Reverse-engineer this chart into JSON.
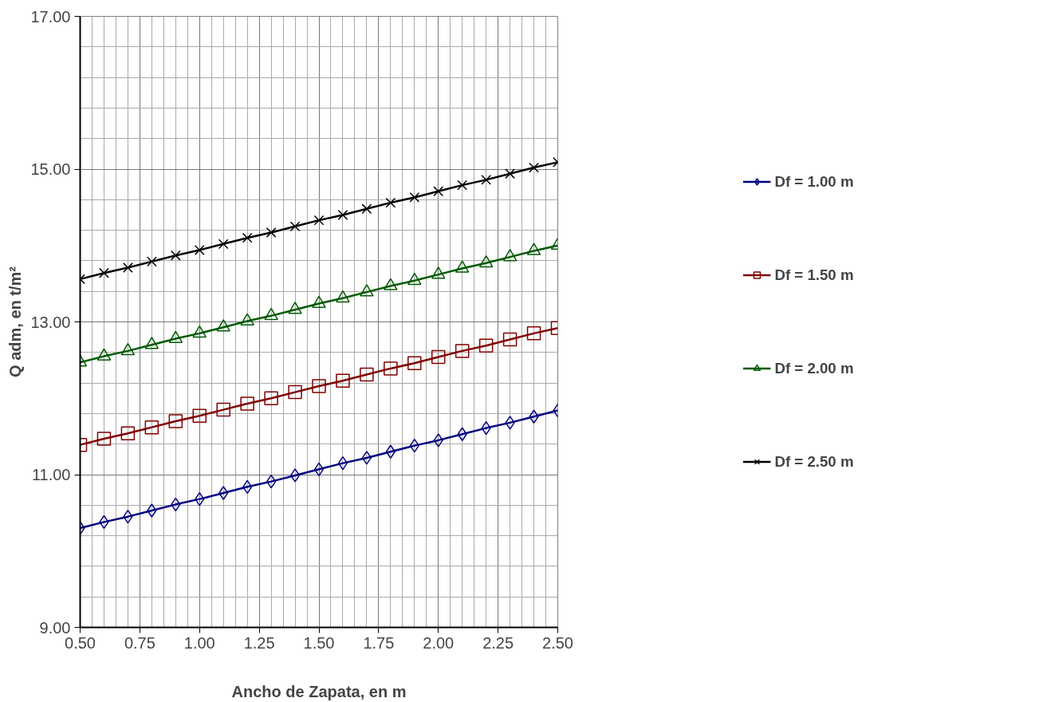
{
  "chart_data": {
    "type": "line",
    "xlabel": "Ancho de Zapata, en m",
    "ylabel": "Q adm, en t/m²",
    "x": [
      0.5,
      0.6,
      0.7,
      0.8,
      0.9,
      1.0,
      1.1,
      1.2,
      1.3,
      1.4,
      1.5,
      1.6,
      1.7,
      1.8,
      1.9,
      2.0,
      2.1,
      2.2,
      2.3,
      2.4,
      2.5
    ],
    "series": [
      {
        "name": "Df = 1.00 m",
        "color": "#000080",
        "marker": "diamond",
        "values": [
          10.3,
          10.38,
          10.45,
          10.53,
          10.61,
          10.68,
          10.76,
          10.84,
          10.91,
          10.99,
          11.07,
          11.15,
          11.22,
          11.3,
          11.38,
          11.45,
          11.53,
          11.61,
          11.68,
          11.76,
          11.84
        ]
      },
      {
        "name": "Df = 1.50 m",
        "color": "#800000",
        "marker": "square",
        "values": [
          11.39,
          11.47,
          11.54,
          11.62,
          11.7,
          11.77,
          11.85,
          11.93,
          12.0,
          12.08,
          12.16,
          12.23,
          12.31,
          12.39,
          12.46,
          12.54,
          12.62,
          12.69,
          12.77,
          12.85,
          12.92
        ]
      },
      {
        "name": "Df = 2.00 m",
        "color": "#005a00",
        "marker": "triangle",
        "values": [
          12.47,
          12.55,
          12.62,
          12.7,
          12.78,
          12.85,
          12.93,
          13.01,
          13.08,
          13.16,
          13.24,
          13.31,
          13.39,
          13.47,
          13.54,
          13.62,
          13.7,
          13.77,
          13.85,
          13.93,
          14.0
        ]
      },
      {
        "name": "Df = 2.50 m",
        "color": "#000000",
        "marker": "cross",
        "values": [
          13.56,
          13.64,
          13.71,
          13.79,
          13.87,
          13.94,
          14.02,
          14.1,
          14.17,
          14.25,
          14.33,
          14.4,
          14.48,
          14.56,
          14.63,
          14.71,
          14.79,
          14.86,
          14.94,
          15.02,
          15.09
        ]
      }
    ],
    "xlim": [
      0.5,
      2.5
    ],
    "xticks": [
      {
        "value": 0.5,
        "label": "0.50"
      },
      {
        "value": 0.55,
        "label": null
      },
      {
        "value": 0.6,
        "label": null
      },
      {
        "value": 0.65,
        "label": null
      },
      {
        "value": 0.7,
        "label": null
      },
      {
        "value": 0.75,
        "label": "0.75"
      },
      {
        "value": 0.8,
        "label": null
      },
      {
        "value": 0.85,
        "label": null
      },
      {
        "value": 0.9,
        "label": null
      },
      {
        "value": 0.95,
        "label": null
      },
      {
        "value": 1.0,
        "label": "1.00"
      },
      {
        "value": 1.05,
        "label": null
      },
      {
        "value": 1.1,
        "label": null
      },
      {
        "value": 1.15,
        "label": null
      },
      {
        "value": 1.2,
        "label": null
      },
      {
        "value": 1.25,
        "label": "1.25"
      },
      {
        "value": 1.3,
        "label": null
      },
      {
        "value": 1.35,
        "label": null
      },
      {
        "value": 1.4,
        "label": null
      },
      {
        "value": 1.45,
        "label": null
      },
      {
        "value": 1.5,
        "label": "1.50"
      },
      {
        "value": 1.55,
        "label": null
      },
      {
        "value": 1.6,
        "label": null
      },
      {
        "value": 1.65,
        "label": null
      },
      {
        "value": 1.7,
        "label": null
      },
      {
        "value": 1.75,
        "label": "1.75"
      },
      {
        "value": 1.8,
        "label": null
      },
      {
        "value": 1.85,
        "label": null
      },
      {
        "value": 1.9,
        "label": null
      },
      {
        "value": 1.95,
        "label": null
      },
      {
        "value": 2.0,
        "label": "2.00"
      },
      {
        "value": 2.05,
        "label": null
      },
      {
        "value": 2.1,
        "label": null
      },
      {
        "value": 2.15,
        "label": null
      },
      {
        "value": 2.2,
        "label": null
      },
      {
        "value": 2.25,
        "label": "2.25"
      },
      {
        "value": 2.3,
        "label": null
      },
      {
        "value": 2.35,
        "label": null
      },
      {
        "value": 2.4,
        "label": null
      },
      {
        "value": 2.45,
        "label": null
      },
      {
        "value": 2.5,
        "label": "2.50"
      }
    ],
    "ylim": [
      9,
      17
    ],
    "yticks": [
      {
        "value": 9,
        "label": "9.00"
      },
      {
        "value": 9.4,
        "label": null
      },
      {
        "value": 9.8,
        "label": null
      },
      {
        "value": 10.2,
        "label": null
      },
      {
        "value": 10.6,
        "label": null
      },
      {
        "value": 11,
        "label": "11.00"
      },
      {
        "value": 11.4,
        "label": null
      },
      {
        "value": 11.8,
        "label": null
      },
      {
        "value": 12.2,
        "label": null
      },
      {
        "value": 12.6,
        "label": null
      },
      {
        "value": 13,
        "label": "13.00"
      },
      {
        "value": 13.4,
        "label": null
      },
      {
        "value": 13.8,
        "label": null
      },
      {
        "value": 14.2,
        "label": null
      },
      {
        "value": 14.6,
        "label": null
      },
      {
        "value": 15,
        "label": "15.00"
      },
      {
        "value": 15.4,
        "label": null
      },
      {
        "value": 15.8,
        "label": null
      },
      {
        "value": 16.2,
        "label": null
      },
      {
        "value": 16.6,
        "label": null
      },
      {
        "value": 17,
        "label": "17.00"
      }
    ],
    "grid": true,
    "legend": "right",
    "line_style": "solid"
  }
}
